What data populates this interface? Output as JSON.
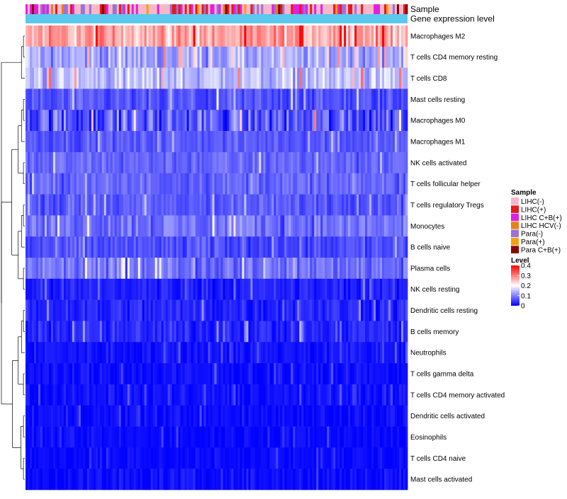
{
  "chart_data": {
    "type": "heatmap",
    "title": "",
    "annotation_tracks": [
      "Sample",
      "Gene expression level"
    ],
    "rows": [
      {
        "label": "Macrophages M2",
        "mean": 0.27,
        "spread": 0.06
      },
      {
        "label": "T cells CD4 memory resting",
        "mean": 0.13,
        "spread": 0.05
      },
      {
        "label": "T cells CD8",
        "mean": 0.15,
        "spread": 0.05
      },
      {
        "label": "Mast cells resting",
        "mean": 0.06,
        "spread": 0.035
      },
      {
        "label": "Macrophages M0",
        "mean": 0.07,
        "spread": 0.07
      },
      {
        "label": "Macrophages M1",
        "mean": 0.07,
        "spread": 0.025
      },
      {
        "label": "NK cells activated",
        "mean": 0.08,
        "spread": 0.03
      },
      {
        "label": "T cells follicular helper",
        "mean": 0.08,
        "spread": 0.03
      },
      {
        "label": "T cells regulatory  Tregs",
        "mean": 0.07,
        "spread": 0.03
      },
      {
        "label": "Monocytes",
        "mean": 0.09,
        "spread": 0.04
      },
      {
        "label": "B cells naive",
        "mean": 0.06,
        "spread": 0.035
      },
      {
        "label": "Plasma cells",
        "mean": 0.09,
        "spread": 0.04
      },
      {
        "label": "NK cells resting",
        "mean": 0.025,
        "spread": 0.025
      },
      {
        "label": "Dendritic cells resting",
        "mean": 0.03,
        "spread": 0.03
      },
      {
        "label": "B cells memory",
        "mean": 0.03,
        "spread": 0.03
      },
      {
        "label": "Neutrophils",
        "mean": 0.015,
        "spread": 0.02
      },
      {
        "label": "T cells gamma delta",
        "mean": 0.01,
        "spread": 0.02
      },
      {
        "label": "T cells CD4 memory activated",
        "mean": 0.012,
        "spread": 0.02
      },
      {
        "label": "Dendritic cells activated",
        "mean": 0.01,
        "spread": 0.02
      },
      {
        "label": "Eosinophils",
        "mean": 0.008,
        "spread": 0.015
      },
      {
        "label": "T cells CD4 naive",
        "mean": 0.008,
        "spread": 0.015
      },
      {
        "label": "Mast cells activated",
        "mean": 0.01,
        "spread": 0.02
      }
    ],
    "sample_legend": {
      "title": "Sample",
      "entries": [
        {
          "label": "LIHC(-)",
          "color": "#F5B8C8"
        },
        {
          "label": "LIHC(+)",
          "color": "#E41A1C"
        },
        {
          "label": "LIHC C+B(+)",
          "color": "#E020E0"
        },
        {
          "label": "LIHC HCV(-)",
          "color": "#E8801A"
        },
        {
          "label": "Para(-)",
          "color": "#9B72D6"
        },
        {
          "label": "Para(+)",
          "color": "#F4A10F"
        },
        {
          "label": "Para C+B(+)",
          "color": "#8B0000"
        }
      ]
    },
    "gene_expression_color": "#5BC8EE",
    "level_legend": {
      "title": "Level",
      "ticks": [
        {
          "label": "0.4",
          "value": 0.4
        },
        {
          "label": "0.3",
          "value": 0.3
        },
        {
          "label": "0.2",
          "value": 0.2
        },
        {
          "label": "0.1",
          "value": 0.1
        },
        {
          "label": "0",
          "value": 0
        }
      ],
      "range": [
        0,
        0.4
      ],
      "colors": [
        "#0000FF",
        "#FFFFFF",
        "#FF0000"
      ]
    },
    "n_columns": 180,
    "dendrogram": "row"
  }
}
